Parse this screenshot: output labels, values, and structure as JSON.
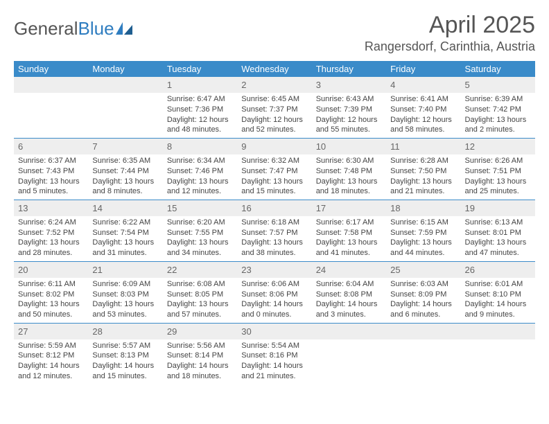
{
  "logo": {
    "text1": "General",
    "text2": "Blue"
  },
  "title": "April 2025",
  "location": "Rangersdorf, Carinthia, Austria",
  "weekdays": [
    "Sunday",
    "Monday",
    "Tuesday",
    "Wednesday",
    "Thursday",
    "Friday",
    "Saturday"
  ],
  "colors": {
    "header_bg": "#3a8bc9",
    "daynum_bg": "#eeeeee",
    "text": "#444444",
    "title": "#555555"
  },
  "weeks": [
    [
      null,
      null,
      {
        "n": "1",
        "sr": "Sunrise: 6:47 AM",
        "ss": "Sunset: 7:36 PM",
        "dl": "Daylight: 12 hours and 48 minutes."
      },
      {
        "n": "2",
        "sr": "Sunrise: 6:45 AM",
        "ss": "Sunset: 7:37 PM",
        "dl": "Daylight: 12 hours and 52 minutes."
      },
      {
        "n": "3",
        "sr": "Sunrise: 6:43 AM",
        "ss": "Sunset: 7:39 PM",
        "dl": "Daylight: 12 hours and 55 minutes."
      },
      {
        "n": "4",
        "sr": "Sunrise: 6:41 AM",
        "ss": "Sunset: 7:40 PM",
        "dl": "Daylight: 12 hours and 58 minutes."
      },
      {
        "n": "5",
        "sr": "Sunrise: 6:39 AM",
        "ss": "Sunset: 7:42 PM",
        "dl": "Daylight: 13 hours and 2 minutes."
      }
    ],
    [
      {
        "n": "6",
        "sr": "Sunrise: 6:37 AM",
        "ss": "Sunset: 7:43 PM",
        "dl": "Daylight: 13 hours and 5 minutes."
      },
      {
        "n": "7",
        "sr": "Sunrise: 6:35 AM",
        "ss": "Sunset: 7:44 PM",
        "dl": "Daylight: 13 hours and 8 minutes."
      },
      {
        "n": "8",
        "sr": "Sunrise: 6:34 AM",
        "ss": "Sunset: 7:46 PM",
        "dl": "Daylight: 13 hours and 12 minutes."
      },
      {
        "n": "9",
        "sr": "Sunrise: 6:32 AM",
        "ss": "Sunset: 7:47 PM",
        "dl": "Daylight: 13 hours and 15 minutes."
      },
      {
        "n": "10",
        "sr": "Sunrise: 6:30 AM",
        "ss": "Sunset: 7:48 PM",
        "dl": "Daylight: 13 hours and 18 minutes."
      },
      {
        "n": "11",
        "sr": "Sunrise: 6:28 AM",
        "ss": "Sunset: 7:50 PM",
        "dl": "Daylight: 13 hours and 21 minutes."
      },
      {
        "n": "12",
        "sr": "Sunrise: 6:26 AM",
        "ss": "Sunset: 7:51 PM",
        "dl": "Daylight: 13 hours and 25 minutes."
      }
    ],
    [
      {
        "n": "13",
        "sr": "Sunrise: 6:24 AM",
        "ss": "Sunset: 7:52 PM",
        "dl": "Daylight: 13 hours and 28 minutes."
      },
      {
        "n": "14",
        "sr": "Sunrise: 6:22 AM",
        "ss": "Sunset: 7:54 PM",
        "dl": "Daylight: 13 hours and 31 minutes."
      },
      {
        "n": "15",
        "sr": "Sunrise: 6:20 AM",
        "ss": "Sunset: 7:55 PM",
        "dl": "Daylight: 13 hours and 34 minutes."
      },
      {
        "n": "16",
        "sr": "Sunrise: 6:18 AM",
        "ss": "Sunset: 7:57 PM",
        "dl": "Daylight: 13 hours and 38 minutes."
      },
      {
        "n": "17",
        "sr": "Sunrise: 6:17 AM",
        "ss": "Sunset: 7:58 PM",
        "dl": "Daylight: 13 hours and 41 minutes."
      },
      {
        "n": "18",
        "sr": "Sunrise: 6:15 AM",
        "ss": "Sunset: 7:59 PM",
        "dl": "Daylight: 13 hours and 44 minutes."
      },
      {
        "n": "19",
        "sr": "Sunrise: 6:13 AM",
        "ss": "Sunset: 8:01 PM",
        "dl": "Daylight: 13 hours and 47 minutes."
      }
    ],
    [
      {
        "n": "20",
        "sr": "Sunrise: 6:11 AM",
        "ss": "Sunset: 8:02 PM",
        "dl": "Daylight: 13 hours and 50 minutes."
      },
      {
        "n": "21",
        "sr": "Sunrise: 6:09 AM",
        "ss": "Sunset: 8:03 PM",
        "dl": "Daylight: 13 hours and 53 minutes."
      },
      {
        "n": "22",
        "sr": "Sunrise: 6:08 AM",
        "ss": "Sunset: 8:05 PM",
        "dl": "Daylight: 13 hours and 57 minutes."
      },
      {
        "n": "23",
        "sr": "Sunrise: 6:06 AM",
        "ss": "Sunset: 8:06 PM",
        "dl": "Daylight: 14 hours and 0 minutes."
      },
      {
        "n": "24",
        "sr": "Sunrise: 6:04 AM",
        "ss": "Sunset: 8:08 PM",
        "dl": "Daylight: 14 hours and 3 minutes."
      },
      {
        "n": "25",
        "sr": "Sunrise: 6:03 AM",
        "ss": "Sunset: 8:09 PM",
        "dl": "Daylight: 14 hours and 6 minutes."
      },
      {
        "n": "26",
        "sr": "Sunrise: 6:01 AM",
        "ss": "Sunset: 8:10 PM",
        "dl": "Daylight: 14 hours and 9 minutes."
      }
    ],
    [
      {
        "n": "27",
        "sr": "Sunrise: 5:59 AM",
        "ss": "Sunset: 8:12 PM",
        "dl": "Daylight: 14 hours and 12 minutes."
      },
      {
        "n": "28",
        "sr": "Sunrise: 5:57 AM",
        "ss": "Sunset: 8:13 PM",
        "dl": "Daylight: 14 hours and 15 minutes."
      },
      {
        "n": "29",
        "sr": "Sunrise: 5:56 AM",
        "ss": "Sunset: 8:14 PM",
        "dl": "Daylight: 14 hours and 18 minutes."
      },
      {
        "n": "30",
        "sr": "Sunrise: 5:54 AM",
        "ss": "Sunset: 8:16 PM",
        "dl": "Daylight: 14 hours and 21 minutes."
      },
      null,
      null,
      null
    ]
  ]
}
